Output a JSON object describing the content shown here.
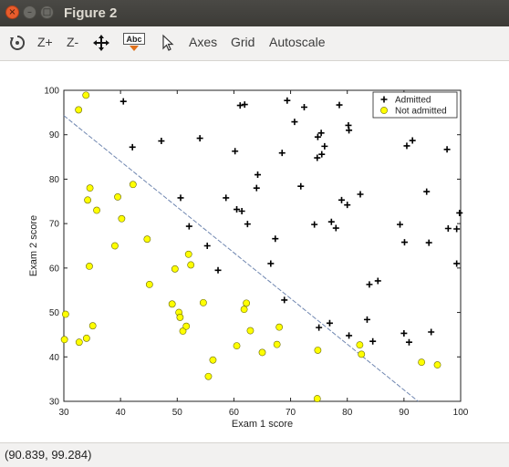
{
  "window": {
    "title": "Figure 2"
  },
  "toolbar": {
    "zoom_in_label": "Z+",
    "zoom_out_label": "Z-",
    "text_tool_label": "Abc",
    "axes_label": "Axes",
    "grid_label": "Grid",
    "autoscale_label": "Autoscale"
  },
  "status": {
    "coords": "(90.839, 99.284)"
  },
  "colors": {
    "admitted": "#000000",
    "not_admitted": "#ffff00",
    "boundary": "#6f86b0"
  },
  "chart_data": {
    "type": "scatter",
    "xlabel": "Exam 1 score",
    "ylabel": "Exam 2 score",
    "xlim": [
      30,
      100
    ],
    "ylim": [
      30,
      100
    ],
    "xticks": [
      30,
      40,
      50,
      60,
      70,
      80,
      90,
      100
    ],
    "yticks": [
      30,
      40,
      50,
      60,
      70,
      80,
      90,
      100
    ],
    "grid": false,
    "legend_position": "top-right",
    "series": [
      {
        "name": "Admitted",
        "marker": "plus",
        "points": [
          [
            40.5,
            97.5
          ],
          [
            42.1,
            87.2
          ],
          [
            47.2,
            88.6
          ],
          [
            50.6,
            75.8
          ],
          [
            52.1,
            69.4
          ],
          [
            54.0,
            89.2
          ],
          [
            55.3,
            65.0
          ],
          [
            57.2,
            59.5
          ],
          [
            58.6,
            75.8
          ],
          [
            60.2,
            86.3
          ],
          [
            60.5,
            73.2
          ],
          [
            61.1,
            96.6
          ],
          [
            61.4,
            72.8
          ],
          [
            61.9,
            96.8
          ],
          [
            62.4,
            69.9
          ],
          [
            64.0,
            78.0
          ],
          [
            64.2,
            81.0
          ],
          [
            66.5,
            61.0
          ],
          [
            67.3,
            66.6
          ],
          [
            68.5,
            85.9
          ],
          [
            68.9,
            52.8
          ],
          [
            69.4,
            97.7
          ],
          [
            70.7,
            92.9
          ],
          [
            71.8,
            78.4
          ],
          [
            72.4,
            96.2
          ],
          [
            74.2,
            69.8
          ],
          [
            74.7,
            84.8
          ],
          [
            74.8,
            89.5
          ],
          [
            75.0,
            46.6
          ],
          [
            75.4,
            90.4
          ],
          [
            75.5,
            85.6
          ],
          [
            76.0,
            87.4
          ],
          [
            76.9,
            47.6
          ],
          [
            77.2,
            70.4
          ],
          [
            78.0,
            69.0
          ],
          [
            78.6,
            96.7
          ],
          [
            79.0,
            75.3
          ],
          [
            80.0,
            74.2
          ],
          [
            80.2,
            92.1
          ],
          [
            80.3,
            91.0
          ],
          [
            80.3,
            44.8
          ],
          [
            82.3,
            76.6
          ],
          [
            83.5,
            48.4
          ],
          [
            83.9,
            56.3
          ],
          [
            84.5,
            43.5
          ],
          [
            85.4,
            57.1
          ],
          [
            89.3,
            69.8
          ],
          [
            90.0,
            45.3
          ],
          [
            90.1,
            65.8
          ],
          [
            90.5,
            87.5
          ],
          [
            90.9,
            43.3
          ],
          [
            91.5,
            88.7
          ],
          [
            94.0,
            77.2
          ],
          [
            94.4,
            65.7
          ],
          [
            94.8,
            45.6
          ],
          [
            97.6,
            86.7
          ],
          [
            97.8,
            68.9
          ],
          [
            99.3,
            68.8
          ],
          [
            99.3,
            61.0
          ],
          [
            99.8,
            72.4
          ]
        ]
      },
      {
        "name": "Not admitted",
        "marker": "circle",
        "points": [
          [
            30.1,
            43.9
          ],
          [
            30.3,
            49.6
          ],
          [
            32.6,
            95.6
          ],
          [
            32.7,
            43.3
          ],
          [
            33.9,
            98.9
          ],
          [
            34.0,
            44.2
          ],
          [
            34.2,
            75.3
          ],
          [
            34.5,
            60.4
          ],
          [
            34.6,
            78.0
          ],
          [
            35.1,
            47.0
          ],
          [
            35.8,
            73.0
          ],
          [
            39.0,
            65.0
          ],
          [
            39.5,
            76.0
          ],
          [
            40.2,
            71.1
          ],
          [
            42.2,
            78.8
          ],
          [
            44.7,
            66.5
          ],
          [
            45.1,
            56.3
          ],
          [
            49.1,
            51.9
          ],
          [
            49.6,
            59.8
          ],
          [
            50.3,
            50.0
          ],
          [
            50.5,
            48.9
          ],
          [
            51.0,
            45.8
          ],
          [
            51.6,
            46.9
          ],
          [
            52.0,
            63.1
          ],
          [
            52.4,
            60.7
          ],
          [
            54.6,
            52.2
          ],
          [
            55.5,
            35.6
          ],
          [
            56.3,
            39.3
          ],
          [
            60.5,
            42.5
          ],
          [
            61.8,
            50.7
          ],
          [
            62.2,
            52.1
          ],
          [
            62.9,
            45.9
          ],
          [
            65.0,
            41.0
          ],
          [
            67.6,
            42.8
          ],
          [
            68.0,
            46.7
          ],
          [
            74.7,
            30.6
          ],
          [
            74.8,
            41.5
          ],
          [
            82.2,
            42.7
          ],
          [
            82.5,
            40.6
          ],
          [
            93.1,
            38.8
          ],
          [
            95.9,
            38.2
          ]
        ]
      }
    ],
    "decision_boundary": {
      "points": [
        [
          30,
          94.3
        ],
        [
          92.5,
          30
        ]
      ]
    }
  }
}
